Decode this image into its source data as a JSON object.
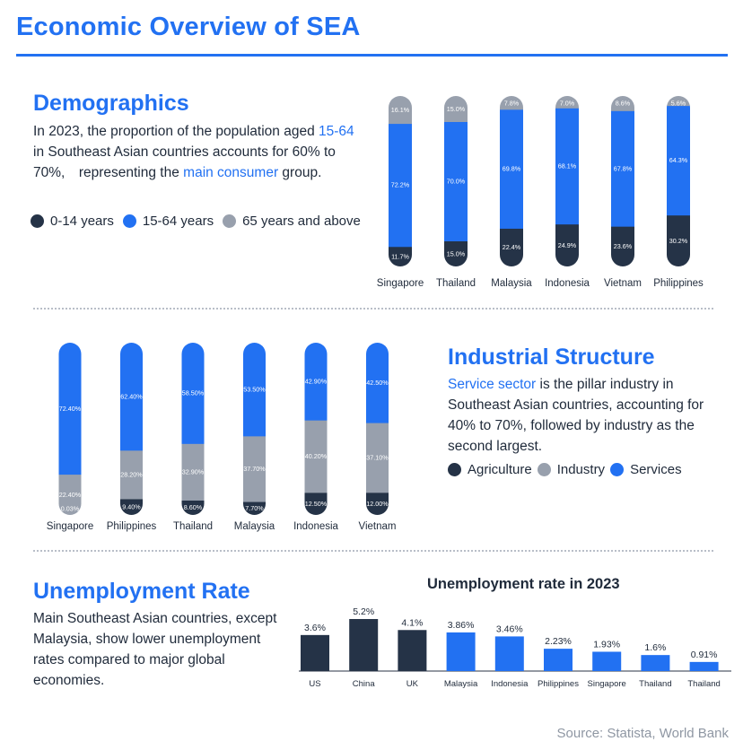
{
  "title": "Economic Overview of SEA",
  "colors": {
    "dark": "#253347",
    "blue": "#2271f2",
    "gray": "#98a0ad"
  },
  "demographics": {
    "title": "Demographics",
    "text_1": "In 2023, the proportion of the population aged ",
    "highlight_1": "15-64",
    "text_2": " in Southeast Asian countries accounts for 60% to 70%,　representing the ",
    "highlight_2": "main consumer",
    "text_3": " group.",
    "legend": [
      "0-14 years",
      "15-64 years",
      "65 years and above"
    ]
  },
  "industry": {
    "title": "Industrial Structure",
    "highlight": "Service sector",
    "text": " is the pillar industry in Southeast Asian countries, accounting for 40% to 70%, followed by industry as the second largest.",
    "legend": [
      "Agriculture",
      "Industry",
      "Services"
    ]
  },
  "unemployment": {
    "title": "Unemployment Rate",
    "text": "Main Southeast Asian countries, except Malaysia, show lower unemployment rates compared to major global economies."
  },
  "source": "Source: Statista, World Bank",
  "chart_data": [
    {
      "id": "age",
      "type": "bar",
      "stacked": true,
      "categories": [
        "Singapore",
        "Thailand",
        "Malaysia",
        "Indonesia",
        "Vietnam",
        "Philippines"
      ],
      "series": [
        {
          "name": "0-14 years",
          "color": "#253347",
          "values": [
            11.7,
            15.0,
            22.4,
            24.9,
            23.6,
            30.2
          ],
          "labels": [
            "11.7%",
            "15.0%",
            "22.4%",
            "24.9%",
            "23.6%",
            "30.2%"
          ]
        },
        {
          "name": "15-64 years",
          "color": "#2271f2",
          "values": [
            72.2,
            70.0,
            69.8,
            68.1,
            67.8,
            64.3
          ],
          "labels": [
            "72.2%",
            "70.0%",
            "69.8%",
            "68.1%",
            "67.8%",
            "64.3%"
          ]
        },
        {
          "name": "65 years and above",
          "color": "#98a0ad",
          "values": [
            16.1,
            15.0,
            7.8,
            7.0,
            8.6,
            5.6
          ],
          "labels": [
            "16.1%",
            "15.0%",
            "7.8%",
            "7.0%",
            "8.6%",
            "5.6%"
          ]
        }
      ]
    },
    {
      "id": "industry",
      "type": "bar",
      "stacked": true,
      "categories": [
        "Singapore",
        "Philippines",
        "Thailand",
        "Malaysia",
        "Indonesia",
        "Vietnam"
      ],
      "series": [
        {
          "name": "Agriculture",
          "color": "#253347",
          "values": [
            0.03,
            9.4,
            8.6,
            7.7,
            12.5,
            12.0
          ],
          "labels": [
            "0.03%",
            "9.40%",
            "8.60%",
            "7.70%",
            "12.50%",
            "12.00%"
          ]
        },
        {
          "name": "Industry",
          "color": "#98a0ad",
          "values": [
            22.4,
            28.2,
            32.9,
            37.7,
            40.2,
            37.1
          ],
          "labels": [
            "22.40%",
            "28.20%",
            "32.90%",
            "37.70%",
            "40.20%",
            "37.10%"
          ]
        },
        {
          "name": "Services",
          "color": "#2271f2",
          "values": [
            72.4,
            62.4,
            58.5,
            53.5,
            42.9,
            42.5
          ],
          "labels": [
            "72.40%",
            "62.40%",
            "58.50%",
            "53.50%",
            "42.90%",
            "42.50%"
          ]
        }
      ]
    },
    {
      "id": "unemployment",
      "type": "bar",
      "title": "Unemployment rate in 2023",
      "categories": [
        "US",
        "China",
        "UK",
        "Malaysia",
        "Indonesia",
        "Philippines",
        "Singapore",
        "Thailand",
        "Thailand"
      ],
      "values": [
        3.6,
        5.2,
        4.1,
        3.86,
        3.46,
        2.23,
        1.93,
        1.6,
        0.91
      ],
      "labels": [
        "3.6%",
        "5.2%",
        "4.1%",
        "3.86%",
        "3.46%",
        "2.23%",
        "1.93%",
        "1.6%",
        "0.91%"
      ],
      "bar_colors": [
        "#253347",
        "#253347",
        "#253347",
        "#2271f2",
        "#2271f2",
        "#2271f2",
        "#2271f2",
        "#2271f2",
        "#2271f2"
      ],
      "ylim": [
        0,
        5.2
      ]
    }
  ]
}
